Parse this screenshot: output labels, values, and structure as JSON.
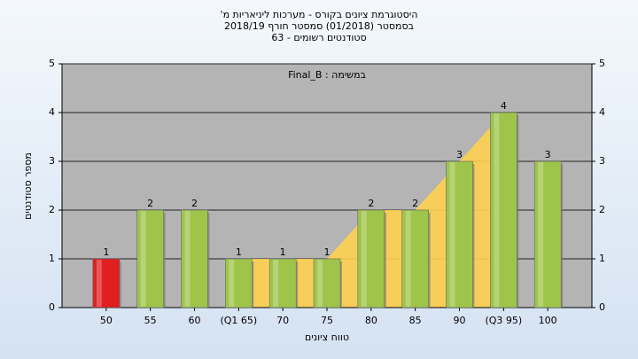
{
  "chart_data": {
    "type": "bar",
    "title": "היסטוגרמת ציונים בקורס - מערכות ליניאריות מ'",
    "subtitle": "בסמסטר (01/2018)  סמסטר חורף 2018/19",
    "subtitle2": "סטודנטים רשומים - 63",
    "annotation": "במשימה : Final_B",
    "x_label": "טווח ציונים",
    "y_label": "מספר סטודנטים",
    "categories": [
      "50",
      "55",
      "60",
      "(Q1 65)",
      "70",
      "75",
      "80",
      "85",
      "90",
      "(Q3 95)",
      "100"
    ],
    "values": [
      1,
      2,
      2,
      1,
      1,
      1,
      2,
      2,
      3,
      4,
      3
    ],
    "colors": [
      "#e02020",
      "#9ec44a",
      "#9ec44a",
      "#9ec44a",
      "#9ec44a",
      "#9ec44a",
      "#9ec44a",
      "#9ec44a",
      "#9ec44a",
      "#9ec44a",
      "#9ec44a"
    ],
    "quartile_area": {
      "from": 3,
      "to": 9,
      "color": "#ffd050"
    },
    "ylim": [
      0,
      5
    ],
    "yticks": [
      0,
      1,
      2,
      3,
      4,
      5
    ],
    "y2lim": [
      0,
      5
    ],
    "y2ticks": [
      0,
      1,
      2,
      3,
      4,
      5
    ],
    "grid": true
  }
}
